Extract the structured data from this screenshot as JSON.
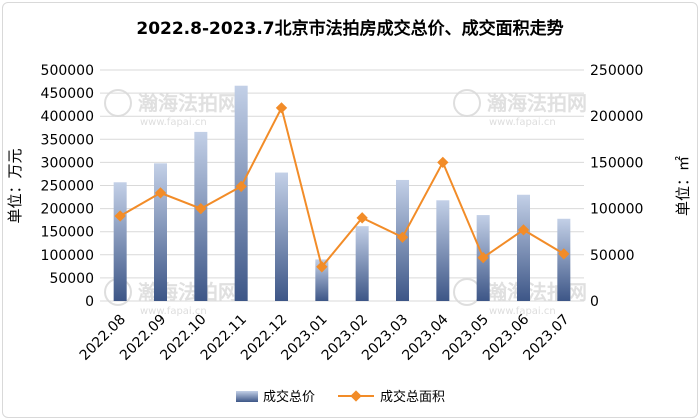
{
  "chart_data": {
    "type": "bar+line",
    "title": "2022.8-2023.7北京市法拍房成交总价、成交面积走势",
    "categories": [
      "2022.08",
      "2022.09",
      "2022.10",
      "2022.11",
      "2022.12",
      "2023.01",
      "2023.02",
      "2023.03",
      "2023.04",
      "2023.05",
      "2023.06",
      "2023.07"
    ],
    "series": [
      {
        "name": "成交总价",
        "kind": "bar",
        "axis": "left",
        "values": [
          257000,
          298000,
          366000,
          466000,
          278000,
          90000,
          162000,
          262000,
          218000,
          186000,
          230000,
          178000
        ]
      },
      {
        "name": "成交总面积",
        "kind": "line",
        "axis": "right",
        "values": [
          92000,
          117000,
          100000,
          124000,
          209000,
          37000,
          90000,
          69000,
          150000,
          47000,
          77000,
          51000
        ]
      }
    ],
    "ylabel_left": "单位：万元",
    "ylabel_right": "单位：㎡",
    "ylim_left": [
      0,
      500000
    ],
    "ylim_right": [
      0,
      250000
    ],
    "yticks_left": [
      "500000",
      "450000",
      "400000",
      "350000",
      "300000",
      "250000",
      "200000",
      "150000",
      "100000",
      "50000",
      "0"
    ],
    "yticks_right": [
      "250000",
      "200000",
      "150000",
      "100000",
      "50000",
      "0"
    ],
    "grid": true,
    "legend_position": "bottom",
    "colors": {
      "bar_top": "#b9c8e2",
      "bar_bottom": "#3f5a8a",
      "line": "#f28c28",
      "grid": "#d9d9d9"
    }
  },
  "watermark": {
    "brand": "瀚海法拍网",
    "url": "www.fapai.cn"
  }
}
